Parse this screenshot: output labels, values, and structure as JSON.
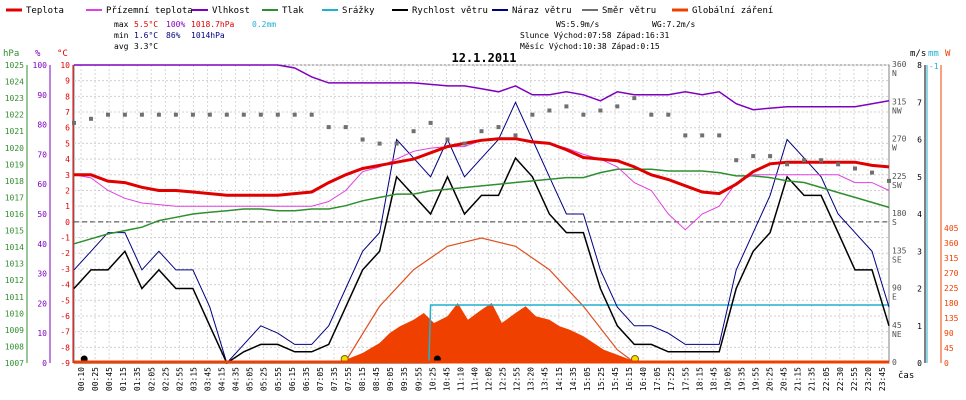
{
  "legend": [
    {
      "label": "Teplota",
      "color": "#e00000"
    },
    {
      "label": "Přízemní teplota",
      "color": "#e040e0"
    },
    {
      "label": "Vlhkost",
      "color": "#8000c0"
    },
    {
      "label": "Tlak",
      "color": "#2f8f2f"
    },
    {
      "label": "Srážky",
      "color": "#20b0d0"
    },
    {
      "label": "Rychlost větru",
      "color": "#000000"
    },
    {
      "label": "Náraz větru",
      "color": "#000080"
    },
    {
      "label": "Směr větru",
      "color": "#707070"
    },
    {
      "label": "Globální záření",
      "color": "#f04000"
    }
  ],
  "stats": {
    "max_label": "max",
    "max_temp": "5.5°C",
    "max_hum": "100%",
    "max_press": "1018.7hPa",
    "max_rain": "0.2mm",
    "min_label": "min",
    "min_temp": "1.6°C",
    "min_hum": "86%",
    "min_press": "1014hPa",
    "avg_label": "avg",
    "avg_temp": "3.3°C",
    "ws": "WS:5.9m/s",
    "wg": "WG:7.2m/s",
    "sun_line": "Slunce Východ:07:58  Západ:16:31",
    "moon_line": "Měsíc  Východ:10:38  Západ:0:15"
  },
  "axis_titles": {
    "hpa": "hPa",
    "pct": "%",
    "degc": "°C",
    "ms1": "m/s",
    "mm": "mm",
    "w": "W",
    "cas": "čas"
  },
  "chart_data": {
    "type": "line",
    "title": "12.1.2011",
    "x_ticks": [
      "00:10",
      "00:25",
      "00:45",
      "01:15",
      "01:35",
      "02:05",
      "02:25",
      "02:55",
      "03:15",
      "03:45",
      "04:15",
      "04:35",
      "05:05",
      "05:25",
      "05:55",
      "06:15",
      "06:35",
      "07:05",
      "07:35",
      "07:55",
      "08:15",
      "08:45",
      "09:05",
      "09:35",
      "09:55",
      "10:25",
      "10:45",
      "11:10",
      "11:40",
      "12:05",
      "12:25",
      "12:55",
      "13:20",
      "13:45",
      "14:15",
      "14:35",
      "15:05",
      "15:25",
      "15:45",
      "16:15",
      "16:40",
      "17:05",
      "17:25",
      "17:55",
      "18:15",
      "18:45",
      "19:05",
      "19:35",
      "19:55",
      "20:25",
      "20:45",
      "21:15",
      "21:35",
      "22:05",
      "22:30",
      "22:55",
      "23:20",
      "23:45"
    ],
    "axes": {
      "hpa": {
        "ticks": [
          "1025",
          "1024",
          "1023",
          "1022",
          "1021",
          "1020",
          "1019",
          "1018",
          "1017",
          "1016",
          "1015",
          "1014",
          "1013",
          "1012",
          "1011",
          "1010",
          "1009",
          "1008",
          "1007"
        ],
        "range": [
          1007,
          1025
        ]
      },
      "pct": {
        "ticks": [
          "100",
          "90",
          "80",
          "70",
          "60",
          "50",
          "40",
          "30",
          "20",
          "10",
          "0"
        ],
        "range": [
          0,
          100
        ]
      },
      "degc": {
        "ticks": [
          "10",
          "9",
          "8",
          "7",
          "6",
          "5",
          "4",
          "3",
          "2",
          "1",
          "0",
          "-1",
          "-2",
          "-3",
          "-4",
          "-5",
          "-6",
          "-7",
          "-8",
          "-9"
        ],
        "range": [
          -9,
          10
        ]
      },
      "dir": {
        "ticks": [
          {
            "deg": "360",
            "name": "N"
          },
          {
            "deg": "315",
            "name": "NW"
          },
          {
            "deg": "270",
            "name": "W"
          },
          {
            "deg": "225",
            "name": "SW"
          },
          {
            "deg": "180",
            "name": "S"
          },
          {
            "deg": "135",
            "name": "SE"
          },
          {
            "deg": "90",
            "name": "E"
          },
          {
            "deg": "45",
            "name": "NE"
          },
          {
            "deg": "0",
            "name": ""
          }
        ],
        "range": [
          0,
          360
        ]
      },
      "ms": {
        "ticks": [
          "8",
          "7",
          "6",
          "5",
          "4",
          "3",
          "2",
          "1",
          "0"
        ],
        "range": [
          0,
          8
        ]
      },
      "mm": {
        "ticks": [
          "-1"
        ]
      },
      "w": {
        "ticks": [
          "405",
          "360",
          "315",
          "270",
          "225",
          "180",
          "135",
          "90",
          "45",
          "0"
        ],
        "range": [
          0,
          405
        ]
      }
    },
    "series": [
      {
        "name": "Teplota",
        "unit": "°C",
        "color": "#e00000",
        "x": [
          0,
          0.5,
          1,
          1.5,
          2,
          2.5,
          3,
          3.5,
          4,
          4.5,
          5,
          5.5,
          6,
          6.5,
          7,
          7.5,
          8,
          8.5,
          9,
          9.5,
          10,
          10.5,
          11,
          11.5,
          12,
          12.5,
          13,
          13.5,
          14,
          14.5,
          15,
          15.5,
          16,
          16.5,
          17,
          17.5,
          18,
          18.5,
          19,
          19.5,
          20,
          20.5,
          21,
          21.5,
          22,
          22.5,
          23,
          23.5,
          24
        ],
        "y": [
          3.0,
          3.0,
          2.6,
          2.5,
          2.2,
          2.0,
          2.0,
          1.9,
          1.8,
          1.7,
          1.7,
          1.7,
          1.7,
          1.8,
          1.9,
          2.5,
          3.0,
          3.4,
          3.6,
          3.8,
          4.0,
          4.4,
          4.8,
          5.0,
          5.2,
          5.3,
          5.3,
          5.1,
          5.0,
          4.6,
          4.1,
          4.0,
          3.9,
          3.5,
          3.0,
          2.7,
          2.3,
          1.9,
          1.8,
          2.4,
          3.2,
          3.7,
          3.8,
          3.8,
          3.8,
          3.8,
          3.8,
          3.6,
          3.5
        ]
      },
      {
        "name": "Přízemní teplota",
        "unit": "°C",
        "color": "#e040e0",
        "x": [
          0,
          0.5,
          1,
          1.5,
          2,
          2.5,
          3,
          3.5,
          4,
          4.5,
          5,
          5.5,
          6,
          6.5,
          7,
          7.5,
          8,
          8.5,
          9,
          9.5,
          10,
          10.5,
          11,
          11.5,
          12,
          12.5,
          13,
          13.5,
          14,
          14.5,
          15,
          15.5,
          16,
          16.5,
          17,
          17.5,
          18,
          18.5,
          19,
          19.5,
          20,
          20.5,
          21,
          21.5,
          22,
          22.5,
          23,
          23.5,
          24
        ],
        "y": [
          3.0,
          2.8,
          2.0,
          1.5,
          1.2,
          1.1,
          1.0,
          1.0,
          1.0,
          1.0,
          1.0,
          1.0,
          1.0,
          1.0,
          1.0,
          1.3,
          2.0,
          3.2,
          3.5,
          4.0,
          4.5,
          4.7,
          4.8,
          4.8,
          5.2,
          5.3,
          5.3,
          5.1,
          5.0,
          4.7,
          4.3,
          4.0,
          3.5,
          2.5,
          2.0,
          0.5,
          -0.5,
          0.5,
          1.0,
          2.5,
          3.0,
          3.0,
          3.0,
          3.0,
          3.0,
          3.0,
          2.5,
          2.5,
          2.0
        ]
      },
      {
        "name": "Vlhkost",
        "unit": "%",
        "color": "#8000c0",
        "x": [
          0,
          1,
          2,
          3,
          4,
          5,
          6,
          6.5,
          7,
          7.5,
          8,
          9,
          10,
          11,
          11.5,
          12,
          12.5,
          13,
          13.5,
          14,
          14.5,
          15,
          15.5,
          16,
          16.5,
          17,
          17.5,
          18,
          18.5,
          19,
          19.5,
          20,
          21,
          22,
          23,
          23.5,
          24
        ],
        "y": [
          100,
          100,
          100,
          100,
          100,
          100,
          100,
          99,
          96,
          94,
          94,
          94,
          94,
          93,
          93,
          92,
          91,
          93,
          90,
          90,
          91,
          90,
          88,
          91,
          90,
          90,
          90,
          91,
          90,
          91,
          87,
          85,
          86,
          86,
          86,
          87,
          88
        ]
      },
      {
        "name": "Tlak",
        "unit": "hPa",
        "color": "#2f8f2f",
        "x": [
          0,
          0.5,
          1,
          1.5,
          2,
          2.5,
          3,
          3.5,
          4,
          4.5,
          5,
          5.5,
          6,
          6.5,
          7,
          7.5,
          8,
          8.5,
          9,
          9.5,
          10,
          10.5,
          11,
          11.5,
          12,
          12.5,
          13,
          13.5,
          14,
          14.5,
          15,
          15.5,
          16,
          16.5,
          17,
          17.5,
          18,
          18.5,
          19,
          19.5,
          20,
          20.5,
          21,
          21.5,
          22,
          22.5,
          23,
          23.5,
          24
        ],
        "y": [
          1014.2,
          1014.5,
          1014.8,
          1015.0,
          1015.2,
          1015.6,
          1015.8,
          1016.0,
          1016.1,
          1016.2,
          1016.3,
          1016.3,
          1016.2,
          1016.2,
          1016.3,
          1016.3,
          1016.5,
          1016.8,
          1017.0,
          1017.2,
          1017.2,
          1017.4,
          1017.5,
          1017.6,
          1017.7,
          1017.8,
          1017.9,
          1018.0,
          1018.1,
          1018.2,
          1018.2,
          1018.5,
          1018.7,
          1018.7,
          1018.7,
          1018.6,
          1018.6,
          1018.6,
          1018.5,
          1018.3,
          1018.3,
          1018.2,
          1018.0,
          1017.9,
          1017.6,
          1017.3,
          1017.0,
          1016.7,
          1016.4
        ]
      },
      {
        "name": "Srážky",
        "unit": "mm",
        "color": "#20b0d0",
        "x": [
          0,
          10.45,
          10.5,
          16.0,
          24
        ],
        "y": [
          0,
          0,
          0.2,
          0.2,
          0.2
        ]
      },
      {
        "name": "Rychlost větru",
        "unit": "m/s",
        "color": "#000000",
        "x": [
          0,
          0.5,
          1,
          1.5,
          2,
          2.5,
          3,
          3.5,
          4,
          4.5,
          5,
          5.5,
          6,
          6.5,
          7,
          7.5,
          8,
          8.5,
          9,
          9.5,
          10,
          10.5,
          11,
          11.5,
          12,
          12.5,
          13,
          13.5,
          14,
          14.5,
          15,
          15.5,
          16,
          16.5,
          17,
          17.5,
          18,
          18.5,
          19,
          19.5,
          20,
          20.5,
          21,
          21.5,
          22,
          22.5,
          23,
          23.5,
          24
        ],
        "y": [
          2.0,
          2.5,
          2.5,
          3.0,
          2.0,
          2.5,
          2.0,
          2.0,
          1.0,
          0,
          0.3,
          0.5,
          0.5,
          0.3,
          0.3,
          0.5,
          1.5,
          2.5,
          3.0,
          5.0,
          4.5,
          4.0,
          5.0,
          4.0,
          4.5,
          4.5,
          5.5,
          5.0,
          4.0,
          3.5,
          3.5,
          2.0,
          1.0,
          0.5,
          0.5,
          0.3,
          0.3,
          0.3,
          0.3,
          2.0,
          3.0,
          3.5,
          5.0,
          4.5,
          4.5,
          3.5,
          2.5,
          2.5,
          1.0
        ]
      },
      {
        "name": "Náraz větru",
        "unit": "m/s",
        "color": "#000080",
        "x": [
          0,
          0.5,
          1,
          1.5,
          2,
          2.5,
          3,
          3.5,
          4,
          4.5,
          5,
          5.5,
          6,
          6.5,
          7,
          7.5,
          8,
          8.5,
          9,
          9.5,
          10,
          10.5,
          11,
          11.5,
          12,
          12.5,
          13,
          13.5,
          14,
          14.5,
          15,
          15.5,
          16,
          16.5,
          17,
          17.5,
          18,
          18.5,
          19,
          19.5,
          20,
          20.5,
          21,
          21.5,
          22,
          22.5,
          23,
          23.5,
          24
        ],
        "y": [
          2.5,
          3.0,
          3.5,
          3.5,
          2.5,
          3.0,
          2.5,
          2.5,
          1.5,
          0,
          0.5,
          1.0,
          0.8,
          0.5,
          0.5,
          1.0,
          2.0,
          3.0,
          3.5,
          6.0,
          5.5,
          5.0,
          6.0,
          5.0,
          5.5,
          6.0,
          7.0,
          6.0,
          5.0,
          4.0,
          4.0,
          2.5,
          1.5,
          1.0,
          1.0,
          0.8,
          0.5,
          0.5,
          0.5,
          2.5,
          3.5,
          4.5,
          6.0,
          5.5,
          5.0,
          4.0,
          3.5,
          3.0,
          1.5
        ]
      },
      {
        "name": "Směr větru",
        "unit": "°",
        "color": "#707070",
        "x": [
          0,
          0.5,
          1,
          1.5,
          2,
          2.5,
          3,
          3.5,
          4,
          4.5,
          5,
          5.5,
          6,
          6.5,
          7,
          7.5,
          8,
          8.5,
          9,
          9.5,
          10,
          10.5,
          11,
          11.5,
          12,
          12.5,
          13,
          13.5,
          14,
          14.5,
          15,
          15.5,
          16,
          16.5,
          17,
          17.5,
          18,
          18.5,
          19,
          19.5,
          20,
          20.5,
          21,
          21.5,
          22,
          22.5,
          23,
          23.5,
          24
        ],
        "y": [
          290,
          295,
          300,
          300,
          300,
          300,
          300,
          300,
          300,
          300,
          300,
          300,
          300,
          300,
          300,
          285,
          285,
          270,
          265,
          265,
          280,
          290,
          270,
          265,
          280,
          285,
          275,
          300,
          305,
          310,
          300,
          305,
          310,
          320,
          300,
          300,
          275,
          275,
          275,
          245,
          250,
          250,
          240,
          245,
          245,
          240,
          235,
          230,
          220
        ]
      },
      {
        "name": "Globální záření",
        "unit": "W",
        "color": "#f04000",
        "x": [
          0,
          7.6,
          8.0,
          8.5,
          9.0,
          9.3,
          9.6,
          10.0,
          10.3,
          10.6,
          11.0,
          11.3,
          11.6,
          12.0,
          12.3,
          12.6,
          13.0,
          13.3,
          13.6,
          14.0,
          14.3,
          14.6,
          15.0,
          15.3,
          15.6,
          16.0,
          16.5,
          24
        ],
        "y": [
          0,
          0,
          10,
          30,
          60,
          90,
          110,
          130,
          150,
          120,
          140,
          180,
          130,
          160,
          180,
          120,
          150,
          170,
          140,
          130,
          110,
          100,
          80,
          60,
          40,
          25,
          5,
          0
        ]
      },
      {
        "name": "Globální záření (teoretické)",
        "unit": "W",
        "color": "#f04000",
        "x": [
          7.97,
          9,
          10,
          11,
          12,
          13,
          14,
          15,
          16,
          16.52
        ],
        "y": [
          0,
          170,
          280,
          350,
          375,
          350,
          280,
          170,
          40,
          0
        ]
      }
    ],
    "markers": {
      "black_dots": [
        0.3,
        10.7
      ],
      "yellow_dots": [
        7.97,
        16.52
      ]
    },
    "grid": true
  }
}
